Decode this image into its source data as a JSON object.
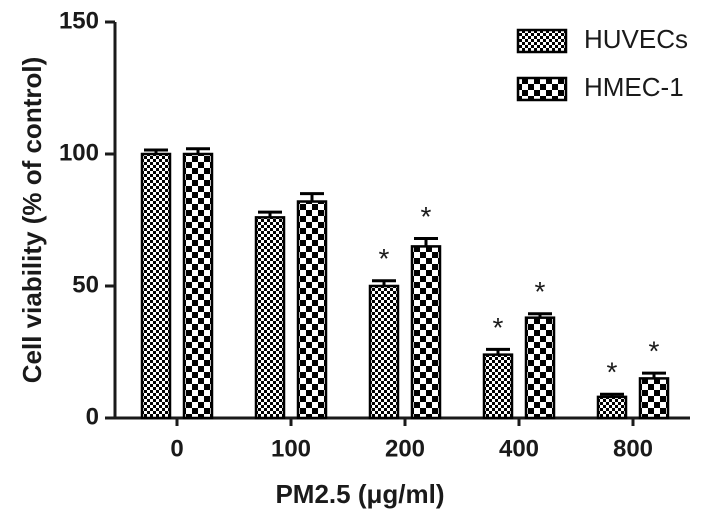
{
  "chart_data": {
    "type": "bar",
    "x_label": "PM2.5 (μg/ml)",
    "y_label": "Cell viability  (% of control)",
    "categories": [
      "0",
      "100",
      "200",
      "400",
      "800"
    ],
    "series": [
      {
        "name": "HUVECs",
        "color": "#000000",
        "values": [
          100,
          76,
          50,
          24,
          8
        ],
        "errors": [
          1.5,
          2,
          2,
          2,
          1
        ],
        "markers": [
          null,
          null,
          "*",
          "*",
          "*"
        ]
      },
      {
        "name": "HMEC-1",
        "color": "#000000",
        "values": [
          100,
          82,
          65,
          38,
          15
        ],
        "errors": [
          2,
          3,
          3,
          1.5,
          2
        ],
        "markers": [
          null,
          null,
          "*",
          "*",
          "*"
        ]
      }
    ],
    "ylim": [
      0,
      150
    ],
    "yticks": [
      0,
      50,
      100,
      150
    ],
    "legend": "upper right",
    "grid": false
  }
}
